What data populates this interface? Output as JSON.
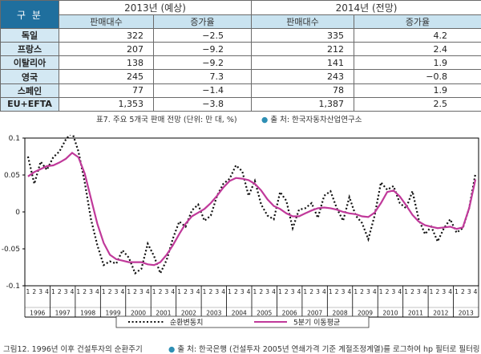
{
  "table": {
    "corner_label": "구 분",
    "year_headers": [
      "2013년 (예상)",
      "2014년 (전망)"
    ],
    "sub_headers": [
      "판매대수",
      "증가율",
      "판매대수",
      "증가율"
    ],
    "rows": [
      {
        "label": "독일",
        "cells": [
          "322",
          "−2.5",
          "335",
          "4.2"
        ]
      },
      {
        "label": "프랑스",
        "cells": [
          "207",
          "−9.2",
          "212",
          "2.4"
        ]
      },
      {
        "label": "이탈리아",
        "cells": [
          "138",
          "−9.2",
          "141",
          "1.9"
        ]
      },
      {
        "label": "영국",
        "cells": [
          "245",
          "7.3",
          "243",
          "−0.8"
        ]
      },
      {
        "label": "스페인",
        "cells": [
          "77",
          "−1.4",
          "78",
          "1.9"
        ]
      },
      {
        "label": "EU+EFTA",
        "cells": [
          "1,353",
          "−3.8",
          "1,387",
          "2.5"
        ]
      }
    ],
    "caption": "표7. 주요 5개국 판매 전망 (단위: 만 대, %)",
    "source": "출 처: 한국자동차산업연구소"
  },
  "figure": {
    "caption": "그림12. 1996년 이후 건설투자의 순환주기",
    "source": "출 처: 한국은행 (건설투자 2005년 연쇄가격 기준 계절조정계열)를 로그하여 hp 필터로 필터링"
  },
  "colors": {
    "header_dark": "#1f6f9e",
    "header_light": "#c9e3f0",
    "row_label_bg": "#d3e8f3",
    "series_dotted": "#111111",
    "series_ma": "#c0399a",
    "source_dot": "#2e8fb4"
  },
  "chart_data": {
    "type": "line",
    "ylim": [
      -0.1,
      0.1
    ],
    "yticks": [
      "0.1",
      "0.05",
      "0",
      "-0.05",
      "-0.1"
    ],
    "quarter_labels": [
      "1",
      "2",
      "3",
      "4"
    ],
    "years": [
      "1996",
      "1997",
      "1998",
      "1999",
      "2000",
      "2001",
      "2002",
      "2003",
      "2004",
      "2005",
      "2006",
      "2007",
      "2008",
      "2009",
      "2010",
      "2011",
      "2012",
      "2013"
    ],
    "series": [
      {
        "name": "순환변동치",
        "style": "dotted",
        "values": [
          0.075,
          0.038,
          0.068,
          0.057,
          0.074,
          0.082,
          0.098,
          0.108,
          0.082,
          0.04,
          -0.01,
          -0.045,
          -0.072,
          -0.067,
          -0.07,
          -0.052,
          -0.062,
          -0.083,
          -0.077,
          -0.043,
          -0.06,
          -0.083,
          -0.065,
          -0.036,
          -0.013,
          -0.02,
          0.002,
          0.01,
          -0.012,
          -0.005,
          0.022,
          0.038,
          0.045,
          0.063,
          0.055,
          0.022,
          0.042,
          0.01,
          -0.005,
          -0.01,
          0.027,
          0.015,
          -0.022,
          0.003,
          0.005,
          0.012,
          -0.008,
          0.022,
          0.028,
          0.005,
          -0.012,
          0.02,
          -0.005,
          -0.015,
          -0.037,
          -0.005,
          0.04,
          0.03,
          0.035,
          0.012,
          0.005,
          0.028,
          -0.01,
          -0.03,
          -0.02,
          -0.04,
          -0.022,
          -0.01,
          -0.028,
          -0.022,
          0.005,
          0.052
        ]
      },
      {
        "name": "5분기 이동평균",
        "style": "solid",
        "values": [
          0.048,
          0.054,
          0.058,
          0.062,
          0.063,
          0.067,
          0.072,
          0.08,
          0.074,
          0.052,
          0.018,
          -0.016,
          -0.042,
          -0.058,
          -0.064,
          -0.066,
          -0.068,
          -0.068,
          -0.068,
          -0.071,
          -0.072,
          -0.068,
          -0.058,
          -0.045,
          -0.03,
          -0.016,
          -0.006,
          -0.001,
          0.004,
          0.012,
          0.022,
          0.033,
          0.042,
          0.046,
          0.045,
          0.043,
          0.038,
          0.029,
          0.017,
          0.008,
          0.004,
          -0.002,
          -0.006,
          -0.006,
          -0.002,
          0.002,
          0.005,
          0.006,
          0.005,
          0.003,
          0.0,
          -0.002,
          -0.003,
          -0.006,
          -0.007,
          -0.001,
          0.012,
          0.027,
          0.029,
          0.021,
          0.009,
          -0.004,
          -0.013,
          -0.018,
          -0.02,
          -0.022,
          -0.021,
          -0.02,
          -0.023,
          -0.021,
          0.005,
          0.044
        ]
      }
    ]
  }
}
